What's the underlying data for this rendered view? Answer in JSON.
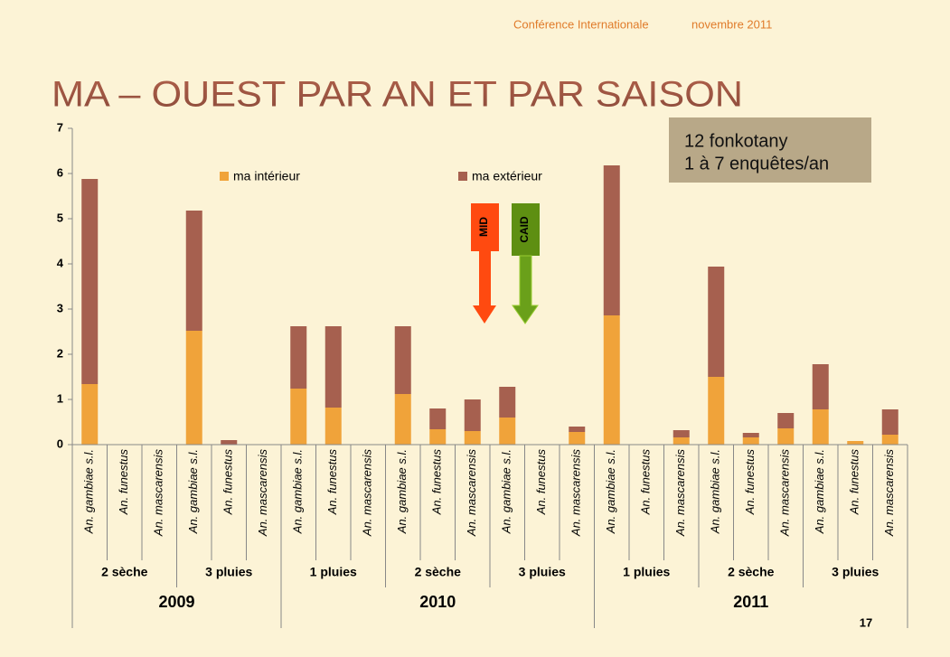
{
  "header": {
    "conference": "Conférence Internationale",
    "date": "novembre 2011"
  },
  "info_box": {
    "line1": "12 fonkotany",
    "line2": "1 à 7 enquêtes/an"
  },
  "annotations": {
    "mid": "MID",
    "caid": "CAID"
  },
  "page_number": "17",
  "chart_data": {
    "type": "stacked-bar",
    "title": "MA – OUEST PAR AN ET PAR SAISON",
    "years": [
      {
        "label": "2009",
        "seasons": [
          {
            "label": "2 sèche",
            "categories": [
              "An. gambiae s.l.",
              "An. funestus",
              "An. mascarensis"
            ]
          },
          {
            "label": "3 pluies",
            "categories": [
              "An. gambiae s.l.",
              "An. funestus",
              "An. mascarensis"
            ]
          }
        ]
      },
      {
        "label": "2010",
        "seasons": [
          {
            "label": "1 pluies",
            "categories": [
              "An. gambiae s.l.",
              "An. funestus",
              "An. mascarensis"
            ]
          },
          {
            "label": "2 sèche",
            "categories": [
              "An. gambiae s.l.",
              "An. funestus",
              "An. mascarensis"
            ]
          },
          {
            "label": "3 pluies",
            "categories": [
              "An. gambiae s.l.",
              "An. funestus",
              "An. mascarensis"
            ]
          }
        ]
      },
      {
        "label": "2011",
        "seasons": [
          {
            "label": "1 pluies",
            "categories": [
              "An. gambiae s.l.",
              "An. funestus",
              "An. mascarensis"
            ]
          },
          {
            "label": "2 sèche",
            "categories": [
              "An. gambiae s.l.",
              "An. funestus",
              "An. mascarensis"
            ]
          },
          {
            "label": "3 pluies",
            "categories": [
              "An. gambiae s.l.",
              "An. funestus",
              "An. mascarensis"
            ]
          }
        ]
      }
    ],
    "series": [
      {
        "name": "ma intérieur",
        "color": "#f0a33a",
        "values": [
          1.34,
          0,
          0,
          2.52,
          0,
          0,
          1.24,
          0.82,
          0,
          1.12,
          0.34,
          0.3,
          0.6,
          0,
          0.28,
          2.86,
          0,
          0.16,
          1.5,
          0.16,
          0.36,
          0.78,
          0.08,
          0.22
        ]
      },
      {
        "name": "ma extérieur",
        "color": "#a6604f",
        "values": [
          4.54,
          0,
          0,
          2.66,
          0.1,
          0,
          1.38,
          1.8,
          0,
          1.5,
          0.46,
          0.7,
          0.68,
          0,
          0.12,
          3.32,
          0,
          0.16,
          2.44,
          0.1,
          0.34,
          1.0,
          0,
          0.56
        ]
      }
    ],
    "ylim": [
      0,
      7
    ],
    "yticks": [
      0,
      1,
      2,
      3,
      4,
      5,
      6,
      7
    ]
  }
}
